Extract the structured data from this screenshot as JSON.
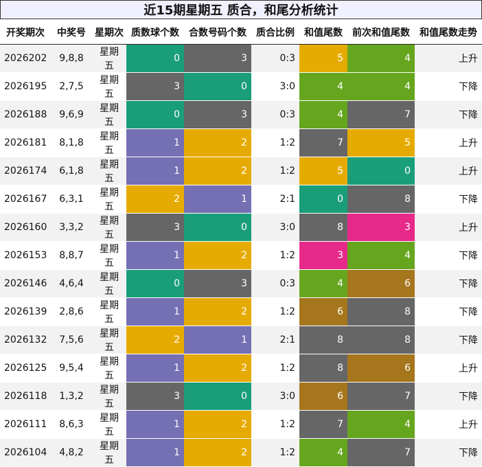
{
  "title": "近15期星期五 质合，和尾分析统计",
  "headers": [
    "开奖期次",
    "中奖号",
    "星期次",
    "质数球个数",
    "合数号码个数",
    "质合比例",
    "和值尾数",
    "前次和值尾数",
    "和值尾数走势"
  ],
  "colors": {
    "0": "#1a9e7a",
    "1": "#7570b3",
    "2": "#e6ab02",
    "3": "#666666",
    "4": "#66a61e",
    "5": "#e6ab02",
    "6": "#a6761d",
    "7": "#666666",
    "8": "#666666",
    "3_tail": "#e7298a"
  },
  "rows": [
    {
      "issue": "2026202",
      "nums": "9,8,8",
      "week": "星期五",
      "prime": "0",
      "comp": "3",
      "ratio": "0:3",
      "tail": "5",
      "prev": "4",
      "trend": "上升"
    },
    {
      "issue": "2026195",
      "nums": "2,7,5",
      "week": "星期五",
      "prime": "3",
      "comp": "0",
      "ratio": "3:0",
      "tail": "4",
      "prev": "4",
      "trend": "下降"
    },
    {
      "issue": "2026188",
      "nums": "9,6,9",
      "week": "星期五",
      "prime": "0",
      "comp": "3",
      "ratio": "0:3",
      "tail": "4",
      "prev": "7",
      "trend": "下降"
    },
    {
      "issue": "2026181",
      "nums": "8,1,8",
      "week": "星期五",
      "prime": "1",
      "comp": "2",
      "ratio": "1:2",
      "tail": "7",
      "prev": "5",
      "trend": "上升"
    },
    {
      "issue": "2026174",
      "nums": "6,1,8",
      "week": "星期五",
      "prime": "1",
      "comp": "2",
      "ratio": "1:2",
      "tail": "5",
      "prev": "0",
      "trend": "上升"
    },
    {
      "issue": "2026167",
      "nums": "6,3,1",
      "week": "星期五",
      "prime": "2",
      "comp": "1",
      "ratio": "2:1",
      "tail": "0",
      "prev": "8",
      "trend": "下降"
    },
    {
      "issue": "2026160",
      "nums": "3,3,2",
      "week": "星期五",
      "prime": "3",
      "comp": "0",
      "ratio": "3:0",
      "tail": "8",
      "prev": "3",
      "trend": "上升"
    },
    {
      "issue": "2026153",
      "nums": "8,8,7",
      "week": "星期五",
      "prime": "1",
      "comp": "2",
      "ratio": "1:2",
      "tail": "3",
      "prev": "4",
      "trend": "下降"
    },
    {
      "issue": "2026146",
      "nums": "4,6,4",
      "week": "星期五",
      "prime": "0",
      "comp": "3",
      "ratio": "0:3",
      "tail": "4",
      "prev": "6",
      "trend": "下降"
    },
    {
      "issue": "2026139",
      "nums": "2,8,6",
      "week": "星期五",
      "prime": "1",
      "comp": "2",
      "ratio": "1:2",
      "tail": "6",
      "prev": "8",
      "trend": "下降"
    },
    {
      "issue": "2026132",
      "nums": "7,5,6",
      "week": "星期五",
      "prime": "2",
      "comp": "1",
      "ratio": "2:1",
      "tail": "8",
      "prev": "8",
      "trend": "下降"
    },
    {
      "issue": "2026125",
      "nums": "9,5,4",
      "week": "星期五",
      "prime": "1",
      "comp": "2",
      "ratio": "1:2",
      "tail": "8",
      "prev": "6",
      "trend": "上升"
    },
    {
      "issue": "2026118",
      "nums": "1,3,2",
      "week": "星期五",
      "prime": "3",
      "comp": "0",
      "ratio": "3:0",
      "tail": "6",
      "prev": "7",
      "trend": "下降"
    },
    {
      "issue": "2026111",
      "nums": "8,6,3",
      "week": "星期五",
      "prime": "1",
      "comp": "2",
      "ratio": "1:2",
      "tail": "7",
      "prev": "4",
      "trend": "上升"
    },
    {
      "issue": "2026104",
      "nums": "4,8,2",
      "week": "星期五",
      "prime": "1",
      "comp": "2",
      "ratio": "1:2",
      "tail": "4",
      "prev": "7",
      "trend": "下降"
    }
  ]
}
